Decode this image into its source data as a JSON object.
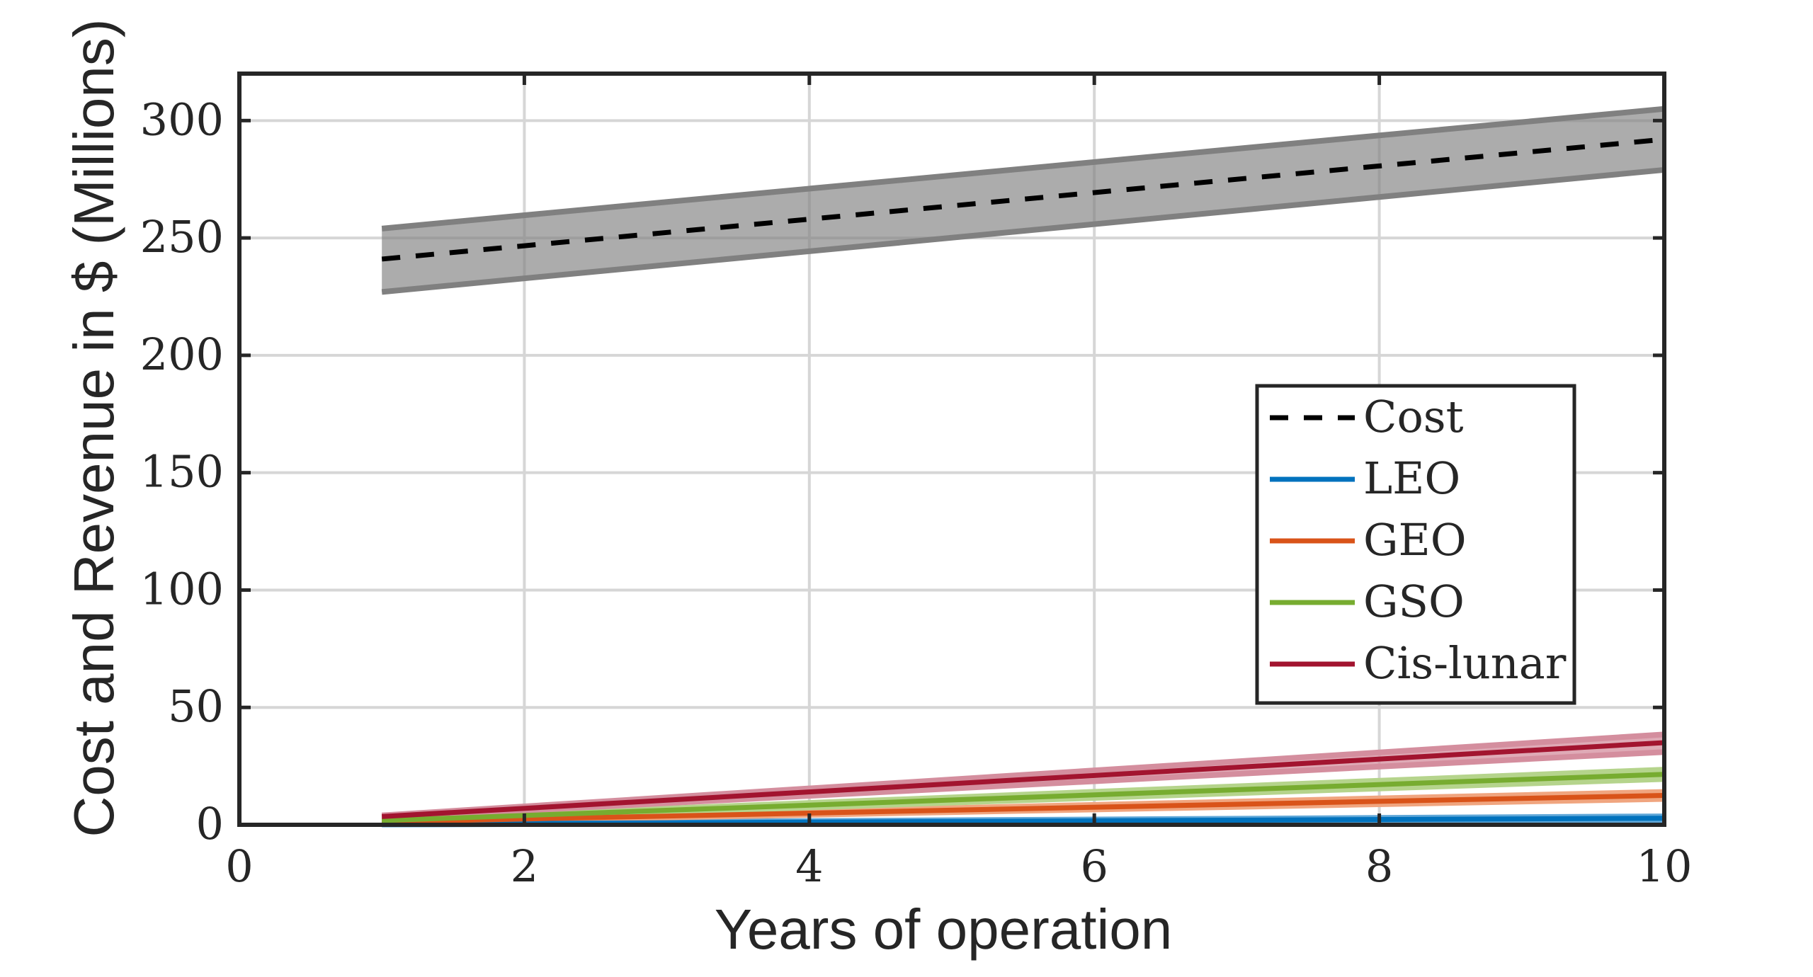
{
  "chart_data": {
    "type": "line",
    "title": "",
    "xlabel": "Years of operation",
    "ylabel": "Cost and Revenue in $ (Millions)",
    "xlim": [
      0,
      10
    ],
    "ylim": [
      0,
      320
    ],
    "xticks": [
      0,
      2,
      4,
      6,
      8,
      10
    ],
    "yticks": [
      0,
      50,
      100,
      150,
      200,
      250,
      300
    ],
    "grid": true,
    "legend_position": "right",
    "series": [
      {
        "name": "Cost",
        "style": "dashed",
        "color": "#000000",
        "band_color": "#808080",
        "x": [
          1,
          10
        ],
        "y": [
          241,
          292
        ],
        "lower": [
          227,
          279
        ],
        "upper": [
          254,
          305
        ]
      },
      {
        "name": "LEO",
        "style": "solid",
        "color": "#0072BD",
        "band_color": "#5FA7D8",
        "x": [
          1,
          10
        ],
        "y": [
          0.3,
          2.8
        ],
        "lower": [
          0.1,
          2.0
        ],
        "upper": [
          0.6,
          3.6
        ]
      },
      {
        "name": "GEO",
        "style": "solid",
        "color": "#D95319",
        "band_color": "#F0A57F",
        "x": [
          1,
          10
        ],
        "y": [
          1.2,
          12.5
        ],
        "lower": [
          0.9,
          11.0
        ],
        "upper": [
          1.6,
          14.0
        ]
      },
      {
        "name": "GSO",
        "style": "solid",
        "color": "#77AC30",
        "band_color": "#B5D48C",
        "x": [
          1,
          10
        ],
        "y": [
          1.8,
          21.5
        ],
        "lower": [
          1.4,
          19.5
        ],
        "upper": [
          2.2,
          23.5
        ]
      },
      {
        "name": "Cis-lunar",
        "style": "solid",
        "color": "#A2142F",
        "band_color": "#D48E9E",
        "x": [
          1,
          10
        ],
        "y": [
          3.5,
          35
        ],
        "lower": [
          3.0,
          31
        ],
        "upper": [
          4.0,
          38.5
        ]
      }
    ]
  }
}
